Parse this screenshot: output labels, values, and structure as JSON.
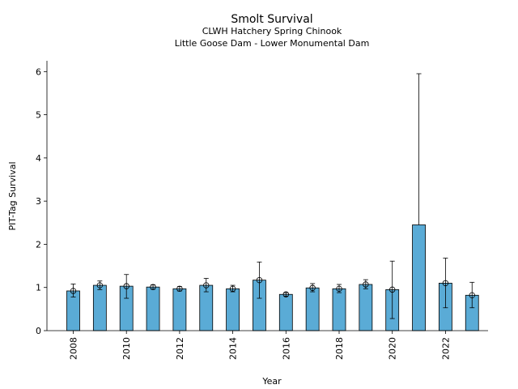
{
  "chart_data": {
    "type": "bar",
    "title": "Smolt Survival",
    "subtitle_line1": "CLWH Hatchery Spring Chinook",
    "subtitle_line2": "Little Goose Dam - Lower Monumental Dam",
    "xlabel": "Year",
    "ylabel": "PIT-Tag Survival",
    "ylim": [
      0,
      6.25
    ],
    "yticks": [
      "0",
      "1",
      "2",
      "3",
      "4",
      "5",
      "6"
    ],
    "xticks": [
      "2008",
      "2010",
      "2012",
      "2014",
      "2016",
      "2018",
      "2020",
      "2022"
    ],
    "bar_color": "#5aabd6",
    "grid": false,
    "categories": [
      "2008",
      "2009",
      "2010",
      "2011",
      "2012",
      "2013",
      "2014",
      "2015",
      "2016",
      "2017",
      "2018",
      "2019",
      "2020",
      "2021",
      "2022",
      "2023"
    ],
    "values": [
      0.92,
      1.05,
      1.03,
      1.01,
      0.97,
      1.05,
      0.97,
      1.17,
      0.84,
      0.99,
      0.97,
      1.07,
      0.95,
      2.45,
      1.1,
      0.82
    ],
    "error_low": [
      0.78,
      0.95,
      0.75,
      0.96,
      0.92,
      0.9,
      0.9,
      0.75,
      0.8,
      0.9,
      0.88,
      0.97,
      0.28,
      null,
      0.53,
      0.53
    ],
    "error_high": [
      1.08,
      1.15,
      1.3,
      1.06,
      1.02,
      1.21,
      1.05,
      1.59,
      0.88,
      1.09,
      1.07,
      1.18,
      1.61,
      5.95,
      1.68,
      1.12
    ],
    "show_marker": [
      true,
      true,
      true,
      true,
      true,
      true,
      true,
      true,
      true,
      true,
      true,
      true,
      true,
      false,
      true,
      true
    ]
  }
}
